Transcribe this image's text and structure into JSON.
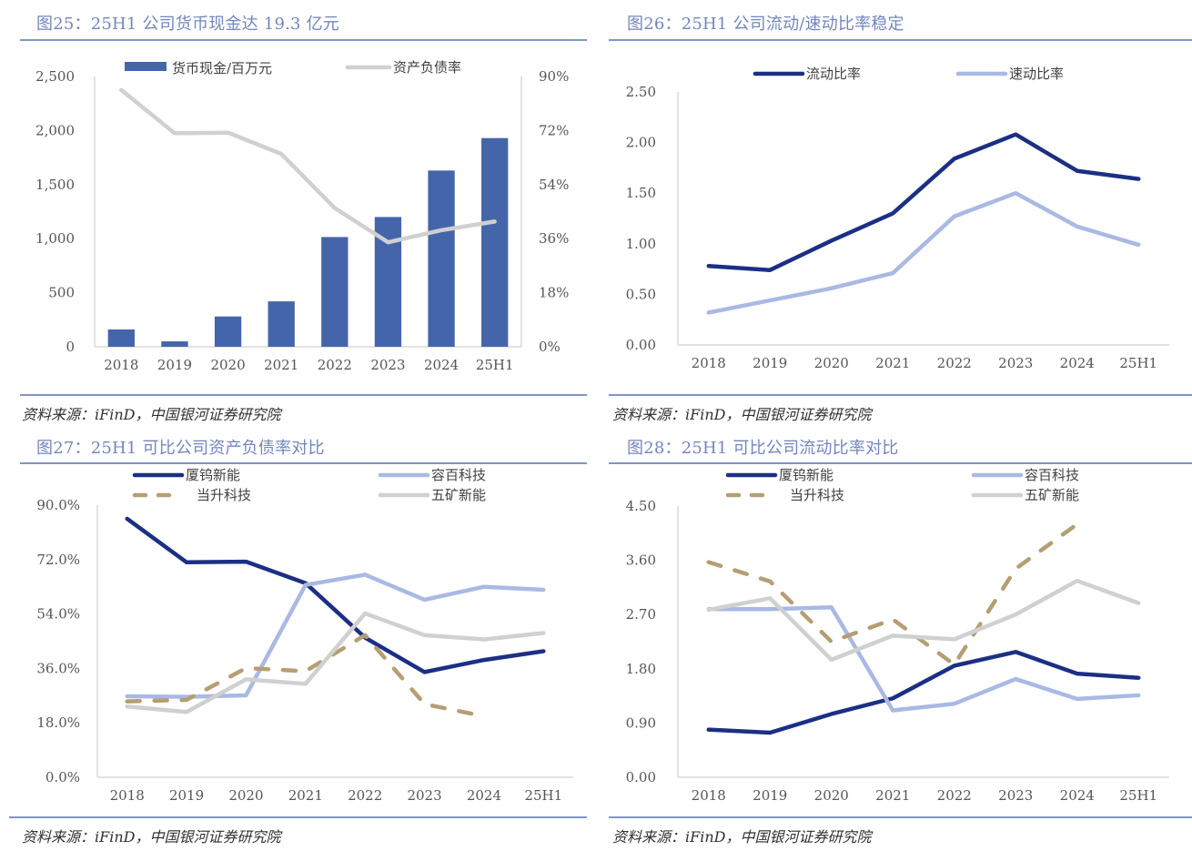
{
  "colors": {
    "bar": "#4565AB",
    "dark_blue": "#1B2F85",
    "light_blue": "#A9B9E3",
    "tan": "#B69E74",
    "gray": "#D0D0D0",
    "title": "#7386BC"
  },
  "source_text": "资料来源：iFinD，中国银河证券研究院",
  "figures": [
    {
      "title": "图25：25H1 公司货币现金达 19.3 亿元"
    },
    {
      "title": "图26：25H1 公司流动/速动比率稳定"
    },
    {
      "title": "图27：25H1 可比公司资产负债率对比"
    },
    {
      "title": "图28：25H1 可比公司流动比率对比"
    }
  ],
  "chart_data": [
    {
      "type": "bar",
      "title": "图25：25H1 公司货币现金达 19.3 亿元",
      "categories": [
        "2018",
        "2019",
        "2020",
        "2021",
        "2022",
        "2023",
        "2024",
        "25H1"
      ],
      "series": [
        {
          "name": "货币现金/百万元",
          "kind": "bar",
          "axis": "left",
          "color": "#4565AB",
          "values": [
            160,
            50,
            280,
            420,
            1015,
            1200,
            1630,
            1930
          ]
        },
        {
          "name": "资产负债率",
          "kind": "line",
          "axis": "right",
          "color": "#D0D0D0",
          "values": [
            0.855,
            0.711,
            0.713,
            0.642,
            0.462,
            0.348,
            0.388,
            0.417
          ]
        }
      ],
      "left_axis": {
        "ylim": [
          0,
          2500
        ],
        "ticks": [
          0,
          500,
          1000,
          1500,
          2000,
          2500
        ],
        "tick_labels": [
          "0",
          "500",
          "1,000",
          "1,500",
          "2,000",
          "2,500"
        ]
      },
      "right_axis": {
        "ylim": [
          0,
          0.9
        ],
        "ticks": [
          0,
          0.18,
          0.36,
          0.54,
          0.72,
          0.9
        ],
        "tick_labels": [
          "0%",
          "18%",
          "36%",
          "54%",
          "72%",
          "90%"
        ]
      },
      "grid": false,
      "legend": "top"
    },
    {
      "type": "line",
      "title": "图26：25H1 公司流动/速动比率稳定",
      "categories": [
        "2018",
        "2019",
        "2020",
        "2021",
        "2022",
        "2023",
        "2024",
        "25H1"
      ],
      "series": [
        {
          "name": "流动比率",
          "color": "#1B2F85",
          "dashed": false,
          "values": [
            0.78,
            0.74,
            1.03,
            1.3,
            1.84,
            2.08,
            1.72,
            1.64
          ]
        },
        {
          "name": "速动比率",
          "color": "#A9B9E3",
          "dashed": false,
          "values": [
            0.32,
            0.44,
            0.56,
            0.71,
            1.27,
            1.5,
            1.17,
            0.99
          ]
        }
      ],
      "ylim": [
        0,
        2.5
      ],
      "ticks": [
        0,
        0.5,
        1.0,
        1.5,
        2.0,
        2.5
      ],
      "tick_labels": [
        "0.00",
        "0.50",
        "1.00",
        "1.50",
        "2.00",
        "2.50"
      ],
      "grid": false,
      "legend": "top"
    },
    {
      "type": "line",
      "title": "图27：25H1 可比公司资产负债率对比",
      "categories": [
        "2018",
        "2019",
        "2020",
        "2021",
        "2022",
        "2023",
        "2024",
        "25H1"
      ],
      "series": [
        {
          "name": "厦钨新能",
          "color": "#1B2F85",
          "dashed": false,
          "values": [
            85.5,
            71.1,
            71.3,
            64.2,
            46.2,
            34.8,
            38.8,
            41.7
          ]
        },
        {
          "name": "容百科技",
          "color": "#A9B9E3",
          "dashed": false,
          "values": [
            26.8,
            26.6,
            27.1,
            63.6,
            67.0,
            58.7,
            63.0,
            62.0
          ]
        },
        {
          "name": "当升科技",
          "color": "#B69E74",
          "dashed": true,
          "values": [
            25.1,
            25.6,
            36.1,
            35.1,
            47.0,
            24.2,
            20.2,
            null
          ]
        },
        {
          "name": "五矿新能",
          "color": "#D0D0D0",
          "dashed": false,
          "values": [
            23.4,
            21.6,
            32.4,
            30.9,
            54.2,
            47.0,
            45.6,
            47.7
          ]
        }
      ],
      "ylim": [
        0,
        90
      ],
      "ticks": [
        0,
        18,
        36,
        54,
        72,
        90
      ],
      "tick_labels": [
        "0.0%",
        "18.0%",
        "36.0%",
        "54.0%",
        "72.0%",
        "90.0%"
      ],
      "grid": false,
      "legend": "top"
    },
    {
      "type": "line",
      "title": "图28：25H1 可比公司流动比率对比",
      "categories": [
        "2018",
        "2019",
        "2020",
        "2021",
        "2022",
        "2023",
        "2024",
        "25H1"
      ],
      "series": [
        {
          "name": "厦钨新能",
          "color": "#1B2F85",
          "dashed": false,
          "values": [
            0.79,
            0.74,
            1.05,
            1.31,
            1.85,
            2.08,
            1.72,
            1.65
          ]
        },
        {
          "name": "容百科技",
          "color": "#A9B9E3",
          "dashed": false,
          "values": [
            2.79,
            2.79,
            2.82,
            1.11,
            1.22,
            1.63,
            1.3,
            1.36
          ]
        },
        {
          "name": "当升科技",
          "color": "#B69E74",
          "dashed": true,
          "values": [
            3.57,
            3.25,
            2.25,
            2.62,
            1.87,
            3.46,
            4.2,
            null
          ]
        },
        {
          "name": "五矿新能",
          "color": "#D0D0D0",
          "dashed": false,
          "values": [
            2.78,
            2.97,
            1.95,
            2.35,
            2.29,
            2.7,
            3.26,
            2.89
          ]
        }
      ],
      "ylim": [
        0,
        4.5
      ],
      "ticks": [
        0,
        0.9,
        1.8,
        2.7,
        3.6,
        4.5
      ],
      "tick_labels": [
        "0.00",
        "0.90",
        "1.80",
        "2.70",
        "3.60",
        "4.50"
      ],
      "grid": false,
      "legend": "top"
    }
  ]
}
